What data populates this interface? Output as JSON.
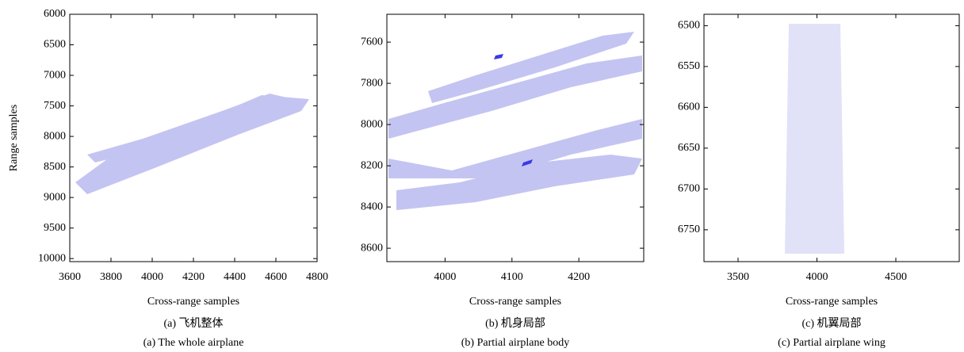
{
  "chart_data": [
    {
      "type": "image",
      "xlabel": "Cross-range samples",
      "ylabel": "Range samples",
      "xlim": [
        3600,
        4800
      ],
      "xticks": [
        3600,
        3800,
        4000,
        4200,
        4400,
        4600,
        4800
      ],
      "ylim": [
        6000,
        10050
      ],
      "yticks": [
        6000,
        6500,
        7000,
        7500,
        8000,
        8500,
        9000,
        9500,
        10000
      ],
      "caption": "(a) 飞机整体",
      "caption_en": "(a) The whole airplane"
    },
    {
      "type": "image",
      "xlabel": "Cross-range samples",
      "xlim": [
        3913,
        4297
      ],
      "xticks": [
        4000,
        4100,
        4200
      ],
      "ylim": [
        7465,
        8665
      ],
      "yticks": [
        7600,
        7800,
        8000,
        8200,
        8400,
        8600
      ],
      "caption": "(b) 机身局部",
      "caption_en": "(b) Partial airplane body"
    },
    {
      "type": "image",
      "xlabel": "Cross-range samples",
      "xlim": [
        3284,
        4902
      ],
      "xticks": [
        3500,
        4000,
        4500
      ],
      "ylim": [
        6486,
        6789
      ],
      "yticks": [
        6500,
        6550,
        6600,
        6650,
        6700,
        6750
      ],
      "caption": "(c) 机翼局部",
      "caption_en": "(c) Partial airplane wing"
    }
  ]
}
